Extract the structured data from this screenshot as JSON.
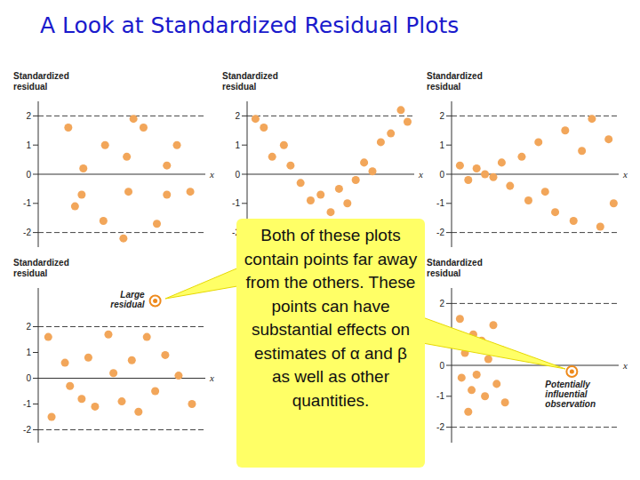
{
  "title": "A Look at Standardized Residual Plots",
  "callout": "Both of these plots contain points far away from the others. These points can have substantial effects on estimates of α and β as well as other quantities.",
  "chart_data": [
    {
      "type": "scatter",
      "y_label": "Standardized residual",
      "x_label": "x",
      "xlim": [
        0,
        10
      ],
      "ylim": [
        -2.5,
        2.5
      ],
      "yticks": [
        -2,
        -1,
        0,
        1,
        2
      ],
      "tick_labels": "y",
      "color": "#f2a65a",
      "x": [
        1.8,
        2.7,
        4.0,
        5.7,
        5.3,
        6.3,
        7.7,
        2.6,
        2.2,
        3.9,
        5.4,
        5.1,
        7.1,
        7.7,
        9.1,
        8.3
      ],
      "values": [
        1.6,
        0.2,
        1.0,
        1.9,
        0.6,
        1.6,
        0.3,
        -0.7,
        -1.1,
        -1.6,
        -0.6,
        -2.2,
        -1.7,
        -0.7,
        -0.6,
        1.0
      ]
    },
    {
      "type": "scatter",
      "y_label": "Standardized residual",
      "x_label": "x",
      "xlim": [
        0,
        10
      ],
      "ylim": [
        -2.5,
        2.5
      ],
      "yticks": [
        -2,
        -1,
        0,
        1,
        2
      ],
      "tick_labels": "y",
      "color": "#f2a65a",
      "x": [
        0.5,
        1.0,
        1.5,
        2.2,
        2.6,
        3.2,
        3.8,
        4.4,
        5.0,
        5.5,
        6.0,
        6.5,
        7.0,
        7.5,
        8.0,
        8.6,
        9.2,
        9.6
      ],
      "values": [
        1.9,
        1.6,
        0.6,
        1.0,
        0.3,
        -0.3,
        -0.9,
        -0.7,
        -1.3,
        -0.5,
        -1.0,
        -0.2,
        0.4,
        0.1,
        1.1,
        1.4,
        2.2,
        1.8
      ]
    },
    {
      "type": "scatter",
      "y_label": "Standardized residual",
      "x_label": "x",
      "xlim": [
        0,
        10
      ],
      "ylim": [
        -2.5,
        2.5
      ],
      "yticks": [
        -2,
        -1,
        0,
        1,
        2
      ],
      "tick_labels": "y",
      "color": "#f2a65a",
      "x": [
        0.5,
        1.0,
        1.5,
        2.0,
        2.5,
        3.0,
        3.5,
        4.2,
        4.6,
        5.2,
        5.6,
        6.2,
        6.8,
        7.3,
        7.8,
        8.4,
        8.9,
        9.4,
        9.7
      ],
      "values": [
        0.3,
        -0.2,
        0.2,
        0.0,
        -0.1,
        0.4,
        -0.4,
        0.6,
        -0.9,
        1.1,
        -0.6,
        -1.3,
        1.5,
        -1.6,
        0.8,
        1.9,
        -1.8,
        1.2,
        -1.0
      ]
    },
    {
      "type": "scatter",
      "y_label": "Standardized residual",
      "x_label": "x",
      "xlim": [
        0,
        10
      ],
      "ylim": [
        -2.5,
        3.5
      ],
      "yticks": [
        -2,
        -1,
        0,
        1,
        2
      ],
      "tick_labels": "y",
      "color": "#f2a65a",
      "x": [
        0.6,
        0.8,
        1.6,
        1.9,
        2.6,
        3.0,
        3.4,
        4.2,
        4.5,
        5.0,
        5.6,
        6.0,
        6.5,
        7.0,
        7.6,
        8.4,
        9.2
      ],
      "values": [
        1.6,
        -1.5,
        0.6,
        -0.3,
        -0.8,
        0.8,
        -1.1,
        1.7,
        0.2,
        -0.9,
        0.7,
        -1.3,
        1.6,
        -0.5,
        0.9,
        0.1,
        -1.0
      ],
      "annotation": {
        "text": "Large residual",
        "x": 7.0,
        "y": 3.0
      }
    },
    {
      "type": "scatter",
      "y_label": "Standardized residual",
      "x_label": "x",
      "xlim": [
        0,
        10
      ],
      "ylim": [
        -2.5,
        2.5
      ],
      "yticks": [
        -2,
        -1,
        0,
        1,
        2
      ],
      "tick_labels": "y",
      "color": "#f2a65a",
      "x": [
        0.5,
        0.8,
        1.0,
        1.3,
        1.5,
        1.8,
        2.0,
        2.2,
        2.5,
        2.7,
        3.0,
        3.2,
        1.2,
        0.6
      ],
      "values": [
        1.5,
        0.4,
        -1.5,
        1.0,
        -0.3,
        0.8,
        -1.0,
        0.2,
        1.3,
        -0.6,
        0.5,
        -1.2,
        -0.8,
        -0.4
      ],
      "annotation": {
        "text": "Potentially influential observation",
        "x": 7.2,
        "y": -0.2
      }
    }
  ]
}
